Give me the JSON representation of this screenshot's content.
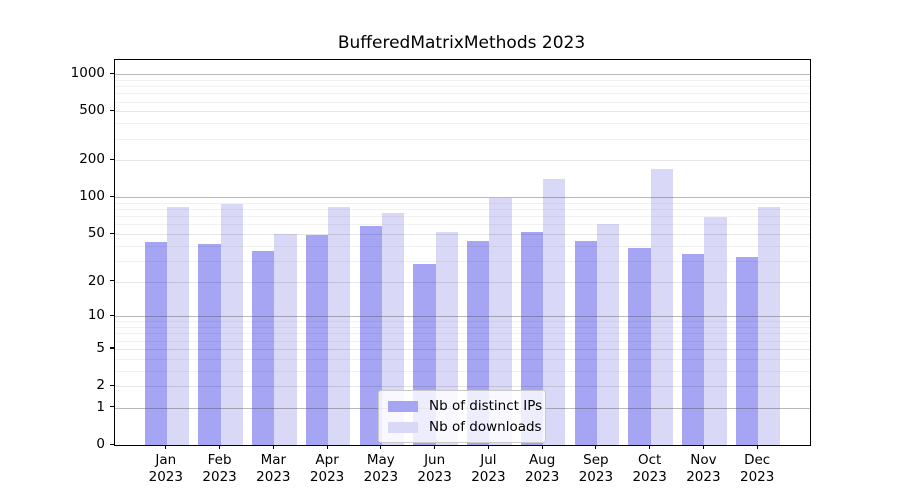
{
  "chart_data": {
    "type": "bar",
    "title": "BufferedMatrixMethods 2023",
    "categories": [
      "Jan",
      "Feb",
      "Mar",
      "Apr",
      "May",
      "Jun",
      "Jul",
      "Aug",
      "Sep",
      "Oct",
      "Nov",
      "Dec"
    ],
    "category_year": "2023",
    "series": [
      {
        "name": "Nb of distinct IPs",
        "color": "#a5a5f3",
        "values": [
          43,
          41,
          36,
          49,
          58,
          28,
          44,
          52,
          44,
          38,
          34,
          32
        ]
      },
      {
        "name": "Nb of downloads",
        "color": "#d9d9f7",
        "values": [
          83,
          89,
          50,
          83,
          74,
          52,
          99,
          140,
          61,
          170,
          69,
          84
        ]
      }
    ],
    "y_axis": {
      "scale": "log1p",
      "ticks": [
        0,
        1,
        2,
        5,
        10,
        20,
        50,
        100,
        200,
        500,
        1000
      ],
      "top_value": 1306
    },
    "x_axis": {
      "label": "",
      "tick_format": "month over year"
    },
    "grid": "horizontal",
    "legend_position": "lower center",
    "colors": {
      "grid_decade": "rgba(70,70,70,0.38)",
      "grid_labeled": "rgba(0,0,0,0.10)",
      "grid_minor": "rgba(0,0,0,0.055)",
      "spine": "#000000",
      "background": "#ffffff"
    }
  }
}
